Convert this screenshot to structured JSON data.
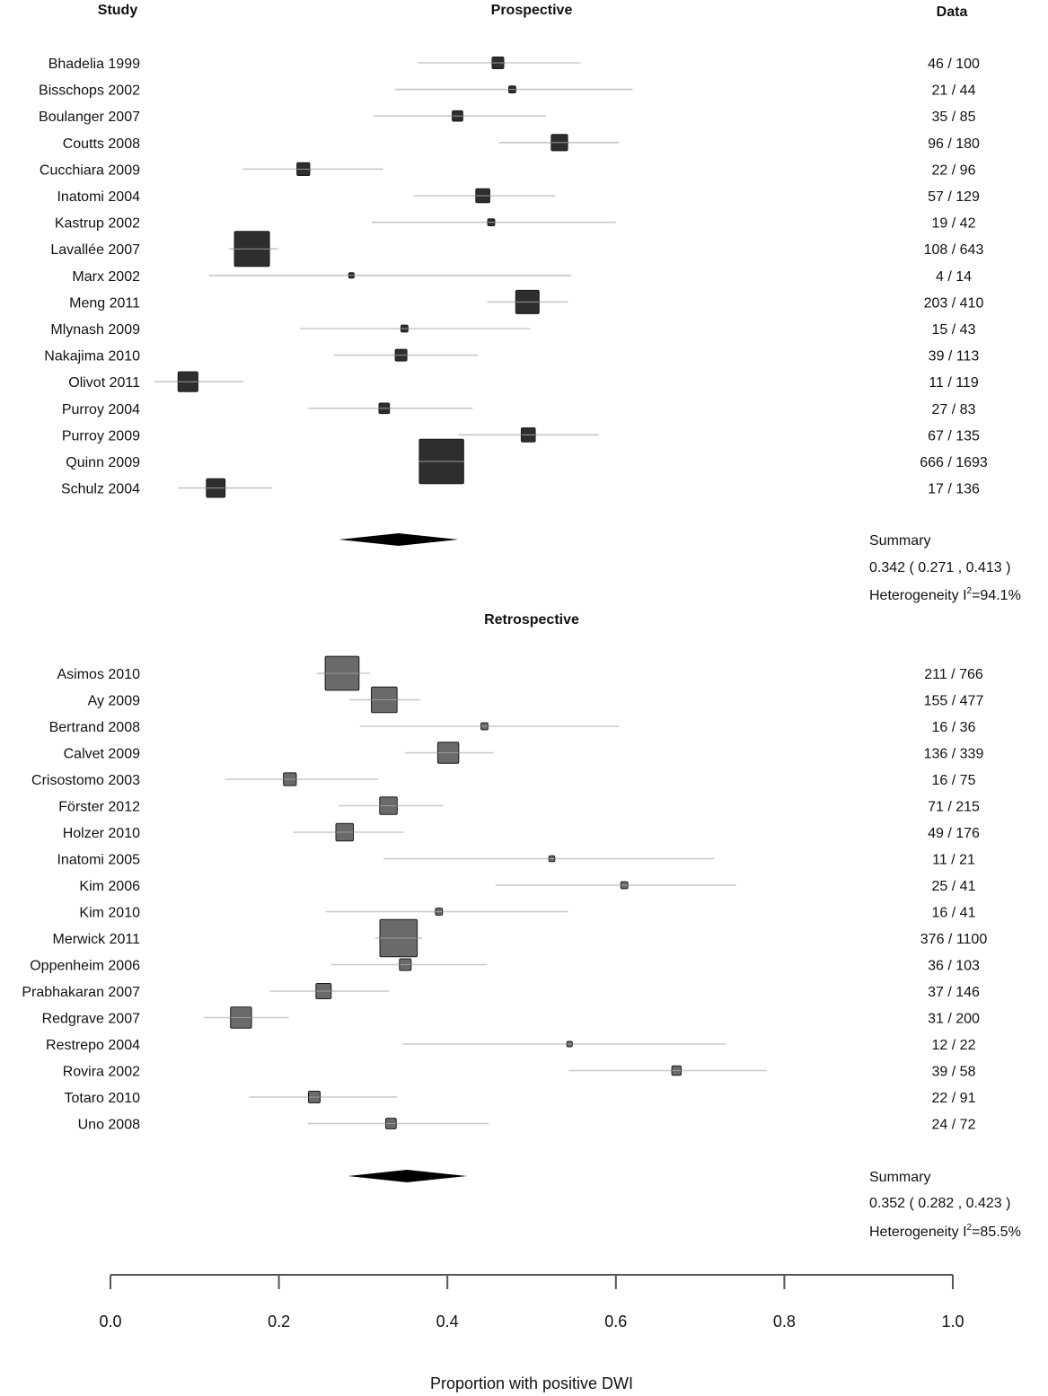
{
  "headers": {
    "study": "Study",
    "prospective": "Prospective",
    "data": "Data",
    "retrospective": "Retrospective"
  },
  "x_axis": {
    "label": "Proportion with positive DWI",
    "ticks": [
      "0.0",
      "0.2",
      "0.4",
      "0.6",
      "0.8",
      "1.0"
    ]
  },
  "summaries": [
    {
      "label": "Summary",
      "ci_text": "0.342  ( 0.271 , 0.413 )",
      "het_prefix": "Heterogeneity I",
      "het_sup": "2",
      "het_value": "=94.1%"
    },
    {
      "label": "Summary",
      "ci_text": "0.352  ( 0.282 , 0.423 )",
      "het_prefix": "Heterogeneity I",
      "het_sup": "2",
      "het_value": "=85.5%"
    }
  ],
  "colors": {
    "prospective_box": "#2e2e2e",
    "retrospective_box": "#6a6a6a",
    "ci_line": "#c8c8c8",
    "diamond": "#000000",
    "axis": "#555555"
  },
  "chart_data": {
    "type": "forest",
    "xlabel": "Proportion with positive DWI",
    "xlim": [
      0.0,
      1.0
    ],
    "groups": [
      {
        "name": "Prospective",
        "studies": [
          {
            "study": "Bhadelia 1999",
            "data": "46 / 100",
            "est": 0.46,
            "lo": 0.365,
            "hi": 0.558,
            "weight": 1.0
          },
          {
            "study": "Bisschops 2002",
            "data": "21 / 44",
            "est": 0.477,
            "lo": 0.338,
            "hi": 0.62,
            "weight": 0.6
          },
          {
            "study": "Boulanger 2007",
            "data": "35 / 85",
            "est": 0.412,
            "lo": 0.313,
            "hi": 0.517,
            "weight": 0.9
          },
          {
            "study": "Coutts 2008",
            "data": "96 / 180",
            "est": 0.533,
            "lo": 0.461,
            "hi": 0.604,
            "weight": 1.4
          },
          {
            "study": "Cucchiara 2009",
            "data": "22 / 96",
            "est": 0.229,
            "lo": 0.157,
            "hi": 0.324,
            "weight": 1.1
          },
          {
            "study": "Inatomi 2004",
            "data": "57 / 129",
            "est": 0.442,
            "lo": 0.36,
            "hi": 0.528,
            "weight": 1.2
          },
          {
            "study": "Kastrup 2002",
            "data": "19 / 42",
            "est": 0.452,
            "lo": 0.31,
            "hi": 0.6,
            "weight": 0.6
          },
          {
            "study": "Lavallée 2007",
            "data": "108 / 643",
            "est": 0.168,
            "lo": 0.141,
            "hi": 0.199,
            "weight": 3.0
          },
          {
            "study": "Marx 2002",
            "data": "4 / 14",
            "est": 0.286,
            "lo": 0.117,
            "hi": 0.547,
            "weight": 0.3
          },
          {
            "study": "Meng 2011",
            "data": "203 / 410",
            "est": 0.495,
            "lo": 0.447,
            "hi": 0.543,
            "weight": 2.0
          },
          {
            "study": "Mlynash 2009",
            "data": "15 / 43",
            "est": 0.349,
            "lo": 0.225,
            "hi": 0.498,
            "weight": 0.6
          },
          {
            "study": "Nakajima 2010",
            "data": "39 / 113",
            "est": 0.345,
            "lo": 0.265,
            "hi": 0.436,
            "weight": 1.0
          },
          {
            "study": "Olivot 2011",
            "data": "11 / 119",
            "est": 0.092,
            "lo": 0.052,
            "hi": 0.158,
            "weight": 1.7
          },
          {
            "study": "Purroy 2004",
            "data": "27 / 83",
            "est": 0.325,
            "lo": 0.235,
            "hi": 0.43,
            "weight": 0.9
          },
          {
            "study": "Purroy 2009",
            "data": "67 / 135",
            "est": 0.496,
            "lo": 0.413,
            "hi": 0.58,
            "weight": 1.2
          },
          {
            "study": "Quinn 2009",
            "data": "666 / 1693",
            "est": 0.393,
            "lo": 0.37,
            "hi": 0.417,
            "weight": 3.8
          },
          {
            "study": "Schulz 2004",
            "data": "17 / 136",
            "est": 0.125,
            "lo": 0.08,
            "hi": 0.192,
            "weight": 1.6
          }
        ],
        "summary": {
          "est": 0.342,
          "lo": 0.271,
          "hi": 0.413,
          "i2": 94.1
        }
      },
      {
        "name": "Retrospective",
        "studies": [
          {
            "study": "Asimos 2010",
            "data": "211 / 766",
            "est": 0.275,
            "lo": 0.245,
            "hi": 0.308,
            "weight": 2.9
          },
          {
            "study": "Ay 2009",
            "data": "155 / 477",
            "est": 0.325,
            "lo": 0.284,
            "hi": 0.368,
            "weight": 2.2
          },
          {
            "study": "Bertrand 2008",
            "data": "16 / 36",
            "est": 0.444,
            "lo": 0.296,
            "hi": 0.604,
            "weight": 0.6
          },
          {
            "study": "Calvet 2009",
            "data": "136 / 339",
            "est": 0.401,
            "lo": 0.35,
            "hi": 0.455,
            "weight": 1.8
          },
          {
            "study": "Crisostomo 2003",
            "data": "16 / 75",
            "est": 0.213,
            "lo": 0.136,
            "hi": 0.318,
            "weight": 1.1
          },
          {
            "study": "Förster 2012",
            "data": "71 / 215",
            "est": 0.33,
            "lo": 0.271,
            "hi": 0.395,
            "weight": 1.5
          },
          {
            "study": "Holzer 2010",
            "data": "49 / 176",
            "est": 0.278,
            "lo": 0.217,
            "hi": 0.348,
            "weight": 1.5
          },
          {
            "study": "Inatomi 2005",
            "data": "11 / 21",
            "est": 0.524,
            "lo": 0.324,
            "hi": 0.717,
            "weight": 0.5
          },
          {
            "study": "Kim 2006",
            "data": "25 / 41",
            "est": 0.61,
            "lo": 0.457,
            "hi": 0.743,
            "weight": 0.6
          },
          {
            "study": "Kim 2010",
            "data": "16 / 41",
            "est": 0.39,
            "lo": 0.256,
            "hi": 0.543,
            "weight": 0.6
          },
          {
            "study": "Merwick 2011",
            "data": "376 / 1100",
            "est": 0.342,
            "lo": 0.314,
            "hi": 0.37,
            "weight": 3.2
          },
          {
            "study": "Oppenheim 2006",
            "data": "36 / 103",
            "est": 0.35,
            "lo": 0.262,
            "hi": 0.447,
            "weight": 1.0
          },
          {
            "study": "Prabhakaran 2007",
            "data": "37 / 146",
            "est": 0.253,
            "lo": 0.189,
            "hi": 0.331,
            "weight": 1.3
          },
          {
            "study": "Redgrave 2007",
            "data": "31 / 200",
            "est": 0.155,
            "lo": 0.111,
            "hi": 0.212,
            "weight": 1.8
          },
          {
            "study": "Restrepo 2004",
            "data": "12 / 22",
            "est": 0.545,
            "lo": 0.347,
            "hi": 0.731,
            "weight": 0.4
          },
          {
            "study": "Rovira 2002",
            "data": "39 / 58",
            "est": 0.672,
            "lo": 0.544,
            "hi": 0.779,
            "weight": 0.8
          },
          {
            "study": "Totaro 2010",
            "data": "22 / 91",
            "est": 0.242,
            "lo": 0.165,
            "hi": 0.34,
            "weight": 1.0
          },
          {
            "study": "Uno 2008",
            "data": "24 / 72",
            "est": 0.333,
            "lo": 0.234,
            "hi": 0.449,
            "weight": 0.9
          }
        ],
        "summary": {
          "est": 0.352,
          "lo": 0.282,
          "hi": 0.423,
          "i2": 85.5
        }
      }
    ]
  }
}
